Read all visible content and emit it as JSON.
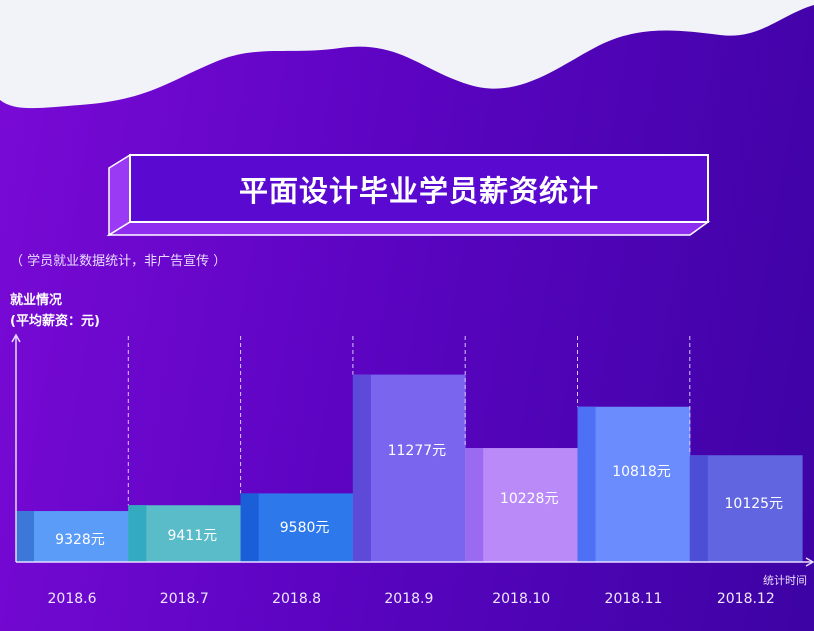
{
  "title": "平面设计毕业学员薪资统计",
  "subtitle": "（ 学员就业数据统计，非广告宣传 ）",
  "chart_data": {
    "type": "bar",
    "title": "平面设计毕业学员薪资统计",
    "ylabel": [
      "就业情况",
      "(平均薪资：元)"
    ],
    "xlabel": "统计时间",
    "categories": [
      "2018.6",
      "2018.7",
      "2018.8",
      "2018.9",
      "2018.10",
      "2018.11",
      "2018.12"
    ],
    "values": [
      9328,
      9411,
      9580,
      11277,
      10228,
      10818,
      10125
    ],
    "labels": [
      "9328元",
      "9411元",
      "9580元",
      "11277元",
      "10228元",
      "10818元",
      "10125元"
    ],
    "colors": [
      [
        "#5a9cf8",
        "#3b78d8"
      ],
      [
        "#5abcc8",
        "#33aabf"
      ],
      [
        "#2d78ea",
        "#1a5fd8"
      ],
      [
        "#7a66ee",
        "#5e4ad8"
      ],
      [
        "#b98af8",
        "#9a6af0"
      ],
      [
        "#6a8cfc",
        "#4d70f4"
      ],
      [
        "#6166e0",
        "#4c4ed6"
      ]
    ],
    "grid": false,
    "legend": "none"
  }
}
